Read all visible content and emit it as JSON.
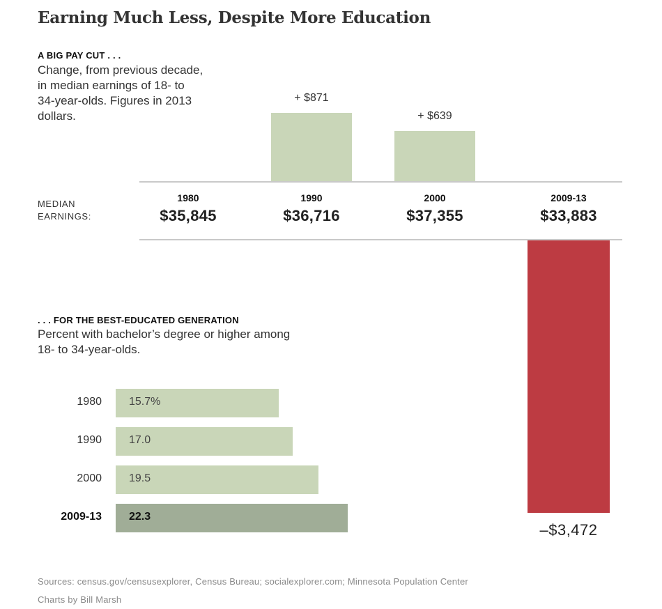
{
  "title": "Earning Much Less, Despite More Education",
  "top_section": {
    "kicker": "A BIG PAY CUT . . .",
    "description": "Change, from previous decade, in median earnings of 18- to 34-year-olds. Figures in 2013 dollars.",
    "median_label_line1": "MEDIAN",
    "median_label_line2": "EARNINGS:"
  },
  "bottom_section": {
    "kicker": ". . . FOR THE BEST-EDUCATED GENERATION",
    "description_line1": "Percent with bachelor’s degree or higher among",
    "description_line2": "18- to 34-year-olds."
  },
  "colors": {
    "bar_light": "#c9d6b8",
    "bar_dark": "#a0ad97",
    "bar_negative": "#bd3b42",
    "rule": "#c9c9c9"
  },
  "chart_data": [
    {
      "type": "bar",
      "categories": [
        "1980",
        "1990",
        "2000",
        "2009-13"
      ],
      "median_earnings": [
        "$35,845",
        "$36,716",
        "$37,355",
        "$33,883"
      ],
      "values": [
        null,
        871,
        639,
        -3472
      ],
      "value_labels": [
        "",
        "+ $871",
        "+ $639",
        "–$3,472"
      ],
      "unit": "2013 dollars"
    },
    {
      "type": "bar",
      "orientation": "horizontal",
      "categories": [
        "1980",
        "1990",
        "2000",
        "2009-13"
      ],
      "values": [
        15.7,
        17.0,
        19.5,
        22.3
      ],
      "value_labels": [
        "15.7%",
        "17.0",
        "19.5",
        "22.3"
      ],
      "highlight": "2009-13"
    }
  ],
  "footer": {
    "sources": "Sources: census.gov/censusexplorer, Census Bureau; socialexplorer.com; Minnesota Population Center",
    "credit": "Charts by Bill Marsh"
  }
}
